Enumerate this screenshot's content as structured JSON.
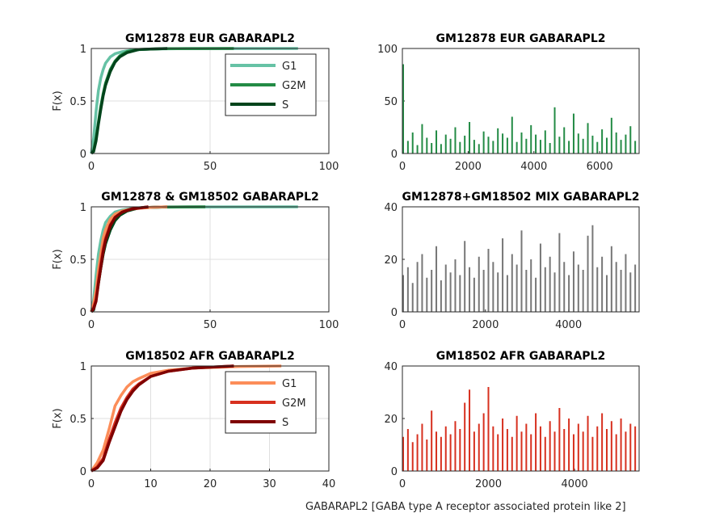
{
  "chart_data": [
    {
      "type": "line",
      "title": "GM12878 EUR GABARAPL2",
      "ylabel": "F(x)",
      "xlim": [
        0,
        100
      ],
      "xticks": [
        0,
        50,
        100
      ],
      "ylim": [
        0,
        1
      ],
      "yticks": [
        0,
        0.5,
        1
      ],
      "grid": true,
      "legend": "northeast",
      "series": [
        {
          "name": "G1",
          "color": "#66c2a5",
          "x": [
            0,
            1,
            2,
            3,
            4,
            5,
            6,
            8,
            10,
            13,
            17,
            25,
            40,
            87
          ],
          "values": [
            0,
            0.15,
            0.4,
            0.6,
            0.72,
            0.8,
            0.86,
            0.92,
            0.95,
            0.97,
            0.985,
            0.995,
            0.999,
            1
          ]
        },
        {
          "name": "G2M",
          "color": "#238b45",
          "x": [
            0,
            1,
            2,
            3,
            4,
            5,
            6,
            8,
            10,
            12,
            15,
            20,
            30,
            60
          ],
          "values": [
            0,
            0.03,
            0.15,
            0.3,
            0.45,
            0.57,
            0.67,
            0.8,
            0.88,
            0.93,
            0.97,
            0.99,
            0.998,
            1
          ]
        },
        {
          "name": "S",
          "color": "#00441b",
          "x": [
            0,
            1,
            2,
            3,
            4,
            5,
            6,
            8,
            10,
            12,
            15,
            20,
            32
          ],
          "values": [
            0,
            0.02,
            0.12,
            0.28,
            0.42,
            0.55,
            0.65,
            0.78,
            0.87,
            0.92,
            0.96,
            0.99,
            1
          ]
        }
      ]
    },
    {
      "type": "bar",
      "title": "GM12878 EUR GABARAPL2",
      "xlim": [
        0,
        7200
      ],
      "xticks": [
        0,
        2000,
        4000,
        6000
      ],
      "ylim": [
        0,
        100
      ],
      "yticks": [
        0,
        50,
        100
      ],
      "color": "#238b45",
      "x": [
        0,
        144,
        288,
        432,
        576,
        720,
        864,
        1008,
        1152,
        1296,
        1440,
        1584,
        1728,
        1872,
        2016,
        2160,
        2304,
        2448,
        2592,
        2736,
        2880,
        3024,
        3168,
        3312,
        3456,
        3600,
        3744,
        3888,
        4032,
        4176,
        4320,
        4464,
        4608,
        4752,
        4896,
        5040,
        5184,
        5328,
        5472,
        5616,
        5760,
        5904,
        6048,
        6192,
        6336,
        6480,
        6624,
        6768,
        6912,
        7056
      ],
      "values": [
        85,
        12,
        20,
        8,
        28,
        15,
        10,
        22,
        9,
        18,
        14,
        25,
        11,
        17,
        30,
        13,
        9,
        21,
        16,
        12,
        24,
        19,
        15,
        35,
        11,
        20,
        14,
        27,
        18,
        13,
        22,
        10,
        44,
        16,
        25,
        12,
        38,
        19,
        14,
        29,
        17,
        11,
        23,
        15,
        34,
        20,
        13,
        18,
        26,
        12
      ]
    },
    {
      "type": "line",
      "title": "GM12878 & GM18502 GABARAPL2",
      "ylabel": "F(x)",
      "xlim": [
        0,
        100
      ],
      "xticks": [
        0,
        50,
        100
      ],
      "ylim": [
        0,
        1
      ],
      "yticks": [
        0,
        0.5,
        1
      ],
      "grid": true,
      "series": [
        {
          "color": "#66c2a5",
          "x": [
            0,
            1,
            2,
            3,
            4,
            5,
            6,
            8,
            10,
            13,
            17,
            25,
            40,
            87
          ],
          "values": [
            0,
            0.12,
            0.35,
            0.55,
            0.68,
            0.78,
            0.85,
            0.91,
            0.95,
            0.97,
            0.985,
            0.995,
            0.999,
            1
          ]
        },
        {
          "color": "#238b45",
          "x": [
            0,
            1,
            2,
            3,
            4,
            5,
            6,
            8,
            10,
            12,
            15,
            20,
            30,
            48
          ],
          "values": [
            0,
            0.03,
            0.13,
            0.27,
            0.42,
            0.55,
            0.65,
            0.78,
            0.87,
            0.92,
            0.96,
            0.99,
            0.998,
            1
          ]
        },
        {
          "color": "#00441b",
          "x": [
            0,
            1,
            2,
            3,
            4,
            5,
            6,
            8,
            10,
            12,
            15,
            20,
            32
          ],
          "values": [
            0,
            0.02,
            0.12,
            0.28,
            0.42,
            0.55,
            0.65,
            0.78,
            0.87,
            0.92,
            0.96,
            0.99,
            1
          ]
        },
        {
          "color": "#fc8d59",
          "x": [
            0,
            1,
            2,
            3,
            4,
            5,
            6,
            8,
            10,
            13,
            17,
            25,
            32
          ],
          "values": [
            0,
            0.08,
            0.2,
            0.4,
            0.55,
            0.7,
            0.78,
            0.88,
            0.93,
            0.96,
            0.98,
            0.995,
            1
          ]
        },
        {
          "color": "#d7301f",
          "x": [
            0,
            1,
            2,
            3,
            4,
            5,
            6,
            8,
            10,
            13,
            17,
            24
          ],
          "values": [
            0,
            0.04,
            0.12,
            0.3,
            0.46,
            0.6,
            0.7,
            0.83,
            0.9,
            0.95,
            0.98,
            1
          ]
        },
        {
          "color": "#7f0000",
          "x": [
            0,
            1,
            2,
            3,
            4,
            5,
            6,
            8,
            10,
            13,
            17,
            24
          ],
          "values": [
            0,
            0.03,
            0.1,
            0.27,
            0.42,
            0.57,
            0.68,
            0.82,
            0.9,
            0.95,
            0.98,
            1
          ]
        }
      ]
    },
    {
      "type": "bar",
      "title": "GM12878+GM18502 MIX GABARAPL2",
      "xlim": [
        0,
        5700
      ],
      "xticks": [
        0,
        2000,
        4000
      ],
      "ylim": [
        0,
        40
      ],
      "yticks": [
        0,
        20,
        40
      ],
      "color": "#777777",
      "x": [
        0,
        114,
        228,
        342,
        456,
        570,
        684,
        798,
        912,
        1026,
        1140,
        1254,
        1368,
        1482,
        1596,
        1710,
        1824,
        1938,
        2052,
        2166,
        2280,
        2394,
        2508,
        2622,
        2736,
        2850,
        2964,
        3078,
        3192,
        3306,
        3420,
        3534,
        3648,
        3762,
        3876,
        3990,
        4104,
        4218,
        4332,
        4446,
        4560,
        4674,
        4788,
        4902,
        5016,
        5130,
        5244,
        5358,
        5472,
        5586
      ],
      "values": [
        14,
        17,
        11,
        19,
        22,
        13,
        16,
        25,
        12,
        18,
        15,
        20,
        14,
        27,
        17,
        13,
        21,
        16,
        24,
        19,
        15,
        28,
        14,
        22,
        18,
        31,
        16,
        20,
        13,
        26,
        17,
        21,
        15,
        30,
        19,
        14,
        23,
        18,
        16,
        29,
        33,
        17,
        21,
        14,
        25,
        19,
        16,
        22,
        15,
        18
      ]
    },
    {
      "type": "line",
      "title": "GM18502 AFR GABARAPL2",
      "ylabel": "F(x)",
      "xlim": [
        0,
        40
      ],
      "xticks": [
        0,
        10,
        20,
        30,
        40
      ],
      "ylim": [
        0,
        1
      ],
      "yticks": [
        0,
        0.5,
        1
      ],
      "grid": true,
      "legend": "northeast",
      "series": [
        {
          "name": "G1",
          "color": "#fc8d59",
          "x": [
            0,
            1,
            2,
            3,
            4,
            5,
            6,
            7,
            8,
            10,
            13,
            17,
            25,
            32
          ],
          "values": [
            0,
            0.08,
            0.2,
            0.4,
            0.62,
            0.72,
            0.8,
            0.85,
            0.88,
            0.93,
            0.96,
            0.98,
            0.995,
            1
          ]
        },
        {
          "name": "G2M",
          "color": "#d7301f",
          "x": [
            0,
            1,
            2,
            3,
            4,
            5,
            6,
            7,
            8,
            10,
            13,
            17,
            24
          ],
          "values": [
            0,
            0.04,
            0.12,
            0.3,
            0.46,
            0.6,
            0.7,
            0.78,
            0.83,
            0.9,
            0.95,
            0.98,
            1
          ]
        },
        {
          "name": "S",
          "color": "#7f0000",
          "x": [
            0,
            1,
            2,
            3,
            4,
            5,
            6,
            7,
            8,
            10,
            13,
            17,
            24
          ],
          "values": [
            0,
            0.03,
            0.1,
            0.27,
            0.42,
            0.57,
            0.68,
            0.76,
            0.82,
            0.9,
            0.95,
            0.98,
            1
          ]
        }
      ]
    },
    {
      "type": "bar",
      "title": "GM18502 AFR GABARAPL2",
      "xlim": [
        0,
        5500
      ],
      "xticks": [
        0,
        2000,
        4000
      ],
      "ylim": [
        0,
        40
      ],
      "yticks": [
        0,
        20,
        40
      ],
      "color": "#d7301f",
      "xlabel": "GABARAPL2 [GABA type A receptor associated protein like 2]",
      "x": [
        0,
        110,
        220,
        330,
        440,
        550,
        660,
        770,
        880,
        990,
        1100,
        1210,
        1320,
        1430,
        1540,
        1650,
        1760,
        1870,
        1980,
        2090,
        2200,
        2310,
        2420,
        2530,
        2640,
        2750,
        2860,
        2970,
        3080,
        3190,
        3300,
        3410,
        3520,
        3630,
        3740,
        3850,
        3960,
        4070,
        4180,
        4290,
        4400,
        4510,
        4620,
        4730,
        4840,
        4950,
        5060,
        5170,
        5280,
        5390
      ],
      "values": [
        13,
        16,
        11,
        14,
        18,
        12,
        23,
        15,
        13,
        17,
        14,
        19,
        16,
        26,
        31,
        15,
        18,
        22,
        32,
        17,
        14,
        20,
        16,
        13,
        21,
        15,
        18,
        14,
        22,
        17,
        13,
        19,
        15,
        24,
        16,
        20,
        14,
        18,
        15,
        21,
        13,
        17,
        22,
        16,
        19,
        14,
        20,
        15,
        18,
        17
      ]
    }
  ]
}
